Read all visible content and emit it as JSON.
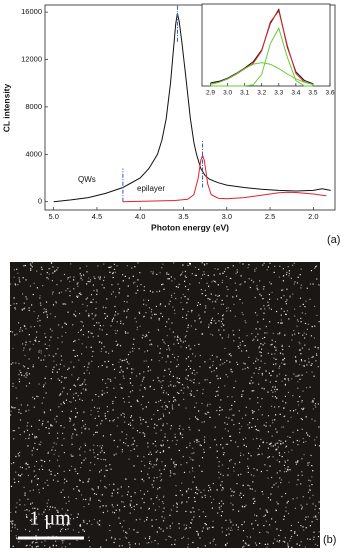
{
  "chart_data": [
    {
      "type": "line",
      "x_label": "Photon energy (eV)",
      "y_label": "CL intensity",
      "panel_label": "(a)",
      "xlim": [
        5.1,
        1.75
      ],
      "ylim": [
        -700,
        16600
      ],
      "xticks": [
        {
          "value": 5,
          "label": "5.0"
        },
        4.5,
        {
          "value": 4,
          "label": "4.0"
        },
        3.5,
        {
          "value": 3,
          "label": "3.0"
        },
        2.5,
        {
          "value": 2,
          "label": "2.0"
        }
      ],
      "yticks": [
        0,
        4000,
        8000,
        12000,
        16000
      ],
      "series": [
        {
          "name": "QWs",
          "color": "#111111",
          "x": [
            5.0,
            4.8,
            4.6,
            4.4,
            4.2,
            4.0,
            3.9,
            3.8,
            3.75,
            3.7,
            3.65,
            3.62,
            3.59,
            3.57,
            3.55,
            3.52,
            3.48,
            3.45,
            3.42,
            3.38,
            3.35,
            3.3,
            3.25,
            3.2,
            3.1,
            3.0,
            2.8,
            2.6,
            2.4,
            2.2,
            2.0,
            1.9,
            1.8
          ],
          "values": [
            0,
            150,
            350,
            700,
            1200,
            2000,
            2800,
            4000,
            5200,
            7000,
            10000,
            12500,
            15000,
            15900,
            15200,
            13500,
            11000,
            9000,
            7000,
            5000,
            4000,
            2800,
            2200,
            1900,
            1600,
            1400,
            1200,
            1050,
            950,
            900,
            950,
            1100,
            950
          ]
        },
        {
          "name": "epilayer",
          "color": "#e8202a",
          "x": [
            4.2,
            3.9,
            3.6,
            3.45,
            3.38,
            3.33,
            3.3,
            3.28,
            3.26,
            3.22,
            3.18,
            3.1,
            3.0,
            2.8,
            2.6,
            2.4,
            2.3,
            2.2,
            2.0,
            1.9,
            1.85
          ],
          "values": [
            0,
            50,
            100,
            200,
            600,
            2000,
            3500,
            3900,
            3500,
            1500,
            600,
            300,
            250,
            350,
            550,
            750,
            800,
            780,
            650,
            550,
            500
          ]
        }
      ],
      "markers": {
        "color": "#3355cc",
        "items": [
          {
            "x": 4.2,
            "ymin": 0,
            "ymax": 2800
          },
          {
            "x": 3.57,
            "ymin": 13500,
            "ymax": 16600
          },
          {
            "x": 3.28,
            "ymin": 1200,
            "ymax": 5200
          }
        ]
      }
    },
    {
      "type": "line",
      "xlim": [
        2.85,
        3.6
      ],
      "ylim": [
        0,
        1.05
      ],
      "xticks": [
        2.9,
        {
          "value": 3,
          "label": "3.0"
        },
        3.1,
        3.2,
        3.3,
        3.4,
        3.5,
        3.6
      ],
      "x": [
        2.9,
        2.95,
        3.0,
        3.05,
        3.1,
        3.15,
        3.2,
        3.25,
        3.3,
        3.35,
        3.4,
        3.45,
        3.5
      ],
      "series": [
        {
          "color": "#111111",
          "values": [
            0.04,
            0.06,
            0.1,
            0.16,
            0.23,
            0.31,
            0.46,
            0.8,
            0.98,
            0.5,
            0.18,
            0.07,
            0.03
          ]
        },
        {
          "color": "#e8202a",
          "values": [
            0.02,
            0.05,
            0.09,
            0.15,
            0.22,
            0.29,
            0.45,
            0.82,
            0.96,
            0.52,
            0.16,
            0.05,
            0.02
          ]
        },
        {
          "color": "#66cc33",
          "values": [
            0,
            0,
            0,
            0,
            0,
            0.015,
            0.15,
            0.54,
            0.74,
            0.37,
            0.07,
            0,
            0
          ]
        },
        {
          "color": "#66cc33",
          "values": [
            0.021,
            0.047,
            0.092,
            0.154,
            0.223,
            0.279,
            0.3,
            0.279,
            0.223,
            0.154,
            0.092,
            0.047,
            0.021
          ]
        }
      ]
    }
  ],
  "panel_b": {
    "scale_bar": "1 μm",
    "panel_label": "(b)"
  }
}
